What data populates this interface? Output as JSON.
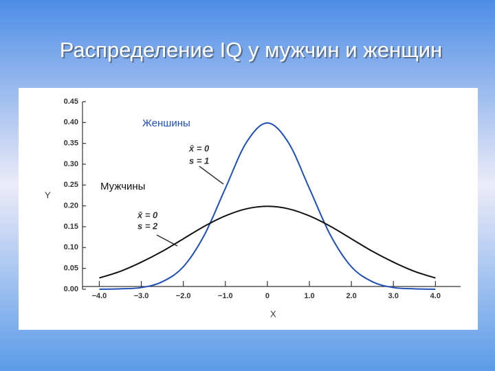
{
  "chart_data": {
    "type": "line",
    "title": "Распределение IQ у мужчин и женщин",
    "xlabel": "X",
    "ylabel": "Y",
    "x": [
      -4,
      -3.5,
      -3,
      -2.5,
      -2,
      -1.5,
      -1,
      -0.5,
      0,
      0.5,
      1,
      1.5,
      2,
      2.5,
      3,
      3.5,
      4
    ],
    "series": [
      {
        "name": "Женшины",
        "color": "#1f4fb5",
        "values": [
          0.0,
          0.001,
          0.004,
          0.018,
          0.054,
          0.13,
          0.242,
          0.352,
          0.399,
          0.352,
          0.242,
          0.13,
          0.054,
          0.018,
          0.004,
          0.001,
          0.0
        ]
      },
      {
        "name": "Мужчины",
        "color": "#111111",
        "values": [
          0.027,
          0.043,
          0.065,
          0.091,
          0.121,
          0.151,
          0.176,
          0.193,
          0.199,
          0.193,
          0.176,
          0.151,
          0.121,
          0.091,
          0.065,
          0.043,
          0.027
        ]
      }
    ],
    "annotations": [
      "x̄ = 0",
      "s = 1",
      "x̄ = 0",
      "s = 2"
    ],
    "xlim": [
      -4.4,
      4.6
    ],
    "ylim": [
      0,
      0.45
    ],
    "xticks": [
      {
        "value": -4,
        "label": "−4.0"
      },
      {
        "value": -3,
        "label": "−3.0"
      },
      {
        "value": -2,
        "label": "−2.0"
      },
      {
        "value": -1,
        "label": "−1.0"
      },
      0,
      {
        "value": 1,
        "label": "1.0"
      },
      {
        "value": 2,
        "label": "2.0"
      },
      {
        "value": 3,
        "label": "3.0"
      },
      {
        "value": 4,
        "label": "4.0"
      }
    ],
    "yticks": [
      {
        "value": 0,
        "label": "0.00"
      },
      0.05,
      {
        "value": 0.1,
        "label": "0.10"
      },
      0.15,
      {
        "value": 0.2,
        "label": "0.20"
      },
      0.25,
      {
        "value": 0.3,
        "label": "0.30"
      },
      0.35,
      {
        "value": 0.4,
        "label": "0.40"
      },
      0.45
    ]
  }
}
